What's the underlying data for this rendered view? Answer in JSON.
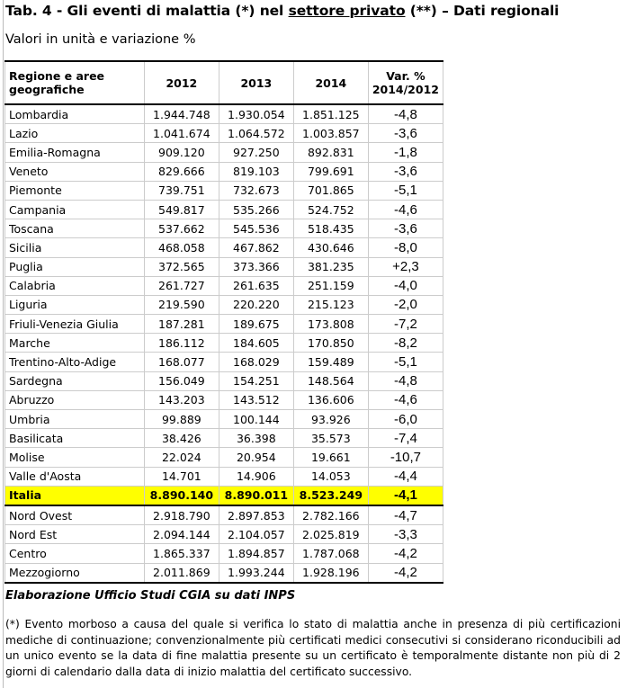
{
  "title": {
    "prefix": "Tab. 4 - Gli eventi di malattia (*) nel ",
    "underlined": "settore privato",
    "suffix": " (**) – Dati regionali"
  },
  "subtitle": "Valori in unità e variazione %",
  "table": {
    "headers": [
      "Regione e aree geografiche",
      "2012",
      "2013",
      "2014",
      "Var. % 2014/2012"
    ],
    "rows": [
      [
        "Lombardia",
        "1.944.748",
        "1.930.054",
        "1.851.125",
        "-4,8"
      ],
      [
        "Lazio",
        "1.041.674",
        "1.064.572",
        "1.003.857",
        "-3,6"
      ],
      [
        "Emilia-Romagna",
        "909.120",
        "927.250",
        "892.831",
        "-1,8"
      ],
      [
        "Veneto",
        "829.666",
        "819.103",
        "799.691",
        "-3,6"
      ],
      [
        "Piemonte",
        "739.751",
        "732.673",
        "701.865",
        "-5,1"
      ],
      [
        "Campania",
        "549.817",
        "535.266",
        "524.752",
        "-4,6"
      ],
      [
        "Toscana",
        "537.662",
        "545.536",
        "518.435",
        "-3,6"
      ],
      [
        "Sicilia",
        "468.058",
        "467.862",
        "430.646",
        "-8,0"
      ],
      [
        "Puglia",
        "372.565",
        "373.366",
        "381.235",
        "+2,3"
      ],
      [
        "Calabria",
        "261.727",
        "261.635",
        "251.159",
        "-4,0"
      ],
      [
        "Liguria",
        "219.590",
        "220.220",
        "215.123",
        "-2,0"
      ],
      [
        "Friuli-Venezia Giulia",
        "187.281",
        "189.675",
        "173.808",
        "-7,2"
      ],
      [
        "Marche",
        "186.112",
        "184.605",
        "170.850",
        "-8,2"
      ],
      [
        "Trentino-Alto-Adige",
        "168.077",
        "168.029",
        "159.489",
        "-5,1"
      ],
      [
        "Sardegna",
        "156.049",
        "154.251",
        "148.564",
        "-4,8"
      ],
      [
        "Abruzzo",
        "143.203",
        "143.512",
        "136.606",
        "-4,6"
      ],
      [
        "Umbria",
        "99.889",
        "100.144",
        "93.926",
        "-6,0"
      ],
      [
        "Basilicata",
        "38.426",
        "36.398",
        "35.573",
        "-7,4"
      ],
      [
        "Molise",
        "22.024",
        "20.954",
        "19.661",
        "-10,7"
      ],
      [
        "Valle d'Aosta",
        "14.701",
        "14.906",
        "14.053",
        "-4,4"
      ],
      [
        "Italia",
        "8.890.140",
        "8.890.011",
        "8.523.249",
        "-4,1"
      ],
      [
        "Nord Ovest",
        "2.918.790",
        "2.897.853",
        "2.782.166",
        "-4,7"
      ],
      [
        "Nord Est",
        "2.094.144",
        "2.104.057",
        "2.025.819",
        "-3,3"
      ],
      [
        "Centro",
        "1.865.337",
        "1.894.857",
        "1.787.068",
        "-4,2"
      ],
      [
        "Mezzogiorno",
        "2.011.869",
        "1.993.244",
        "1.928.196",
        "-4,2"
      ]
    ],
    "highlight_row": "Italia",
    "highlight_color": "#ffff00"
  },
  "source": "Elaborazione Ufficio Studi CGIA su dati INPS",
  "footnote": "(*) Evento morboso a causa del quale si verifica lo stato di malattia anche in presenza di più certificazioni mediche di continuazione; convenzionalmente più certificati medici consecutivi si considerano riconducibili ad un unico evento se la data di fine malattia presente su un certificato è temporalmente distante non più di 2 giorni di calendario dalla data di inizio malattia del certificato successivo."
}
